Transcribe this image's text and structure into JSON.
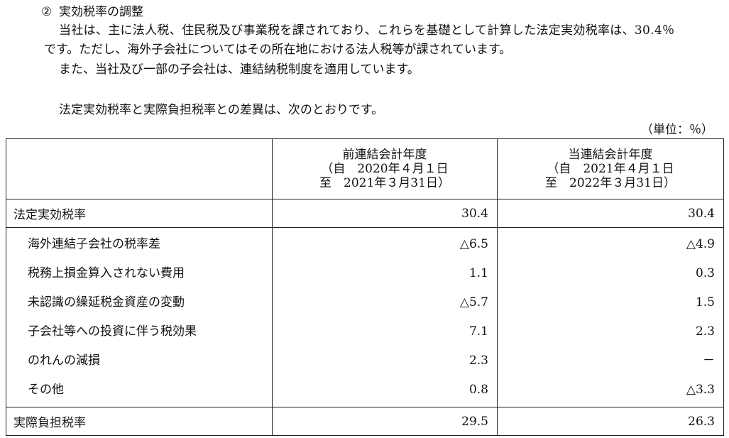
{
  "section": {
    "number": "②",
    "title": "実効税率の調整"
  },
  "paragraphs": [
    "当社は、主に法人税、住民税及び事業税を課されており、これらを基礎として計算した法定実効税率は、30.4％",
    "です。ただし、海外子会社についてはその所在地における法人税等が課されています。",
    "また、当社及び一部の子会社は、連結納税制度を適用しています。",
    "法定実効税率と実際負担税率との差異は、次のとおりです。"
  ],
  "unit": "（単位：％）",
  "table": {
    "columns": [
      {
        "title": "前連結会計年度",
        "from": "（自　2020年４月１日",
        "to": "至　2021年３月31日）"
      },
      {
        "title": "当連結会計年度",
        "from": "（自　2021年４月１日",
        "to": "至　2022年３月31日）"
      }
    ],
    "statutory": {
      "label": "法定実効税率",
      "prev": "30.4",
      "curr": "30.4"
    },
    "items": [
      {
        "label": "海外連結子会社の税率差",
        "prev": "△6.5",
        "curr": "△4.9"
      },
      {
        "label": "税務上損金算入されない費用",
        "prev": "1.1",
        "curr": "0.3"
      },
      {
        "label": "未認識の繰延税金資産の変動",
        "prev": "△5.7",
        "curr": "1.5"
      },
      {
        "label": "子会社等への投資に伴う税効果",
        "prev": "7.1",
        "curr": "2.3"
      },
      {
        "label": "のれんの減損",
        "prev": "2.3",
        "curr": "－"
      },
      {
        "label": "その他",
        "prev": "0.8",
        "curr": "△3.3"
      }
    ],
    "effective": {
      "label": "実際負担税率",
      "prev": "29.5",
      "curr": "26.3"
    }
  }
}
